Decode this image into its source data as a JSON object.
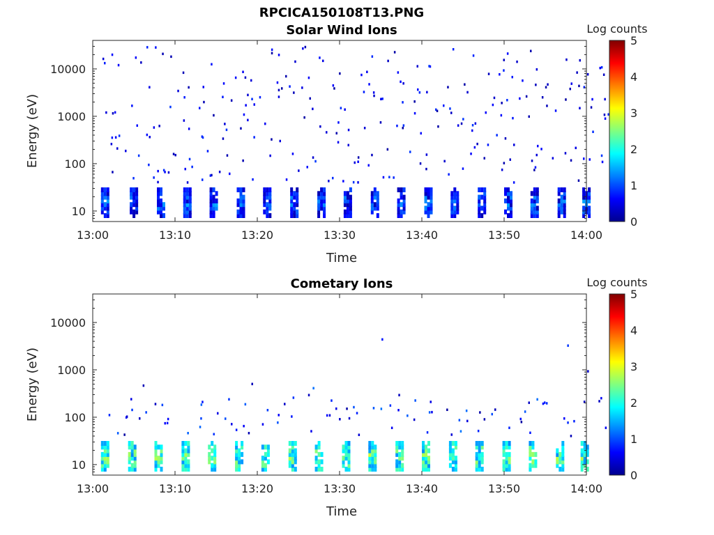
{
  "figure_title": "RPCICA150108T13.PNG",
  "colors": {
    "jet_stops": [
      "#00008f",
      "#0000ff",
      "#0080ff",
      "#00ffff",
      "#80ff80",
      "#ffff00",
      "#ff8000",
      "#ff0000",
      "#800000"
    ]
  },
  "chart_data": [
    {
      "type": "heatmap",
      "title": "Solar Wind Ions",
      "xlabel": "Time",
      "ylabel": "Energy (eV)",
      "x_ticks": [
        "13:00",
        "13:10",
        "13:20",
        "13:30",
        "13:40",
        "13:50",
        "14:00"
      ],
      "x_range_minutes": [
        0,
        60
      ],
      "y_scale": "log",
      "y_ticks": [
        10,
        100,
        1000,
        10000
      ],
      "y_tick_labels": [
        "10",
        "100",
        "1000",
        "10000"
      ],
      "y_range": [
        6,
        40000
      ],
      "colorbar": {
        "label": "Log counts",
        "range": [
          0,
          5
        ],
        "ticks": [
          "0",
          "1",
          "2",
          "3",
          "4",
          "5"
        ]
      },
      "scan_starts_minutes": [
        1,
        4.5,
        7.8,
        11,
        14.2,
        17.5,
        20.7,
        24,
        27.3,
        30.5,
        33.8,
        37,
        40.3,
        43.5,
        46.8,
        50,
        53.2,
        56.5,
        59.5
      ],
      "low_energy_band_eV": [
        8,
        28
      ],
      "low_energy_band_log_counts": [
        0.2,
        1.6
      ],
      "sparse_points_log_counts": [
        0.1,
        0.9
      ]
    },
    {
      "type": "heatmap",
      "title": "Cometary Ions",
      "xlabel": "Time",
      "ylabel": "Energy (eV)",
      "x_ticks": [
        "13:00",
        "13:10",
        "13:20",
        "13:30",
        "13:40",
        "13:50",
        "14:00"
      ],
      "x_range_minutes": [
        0,
        60
      ],
      "y_scale": "log",
      "y_ticks": [
        10,
        100,
        1000,
        10000
      ],
      "y_tick_labels": [
        "10",
        "100",
        "1000",
        "10000"
      ],
      "y_range": [
        6,
        40000
      ],
      "colorbar": {
        "label": "Log counts",
        "range": [
          0,
          5
        ],
        "ticks": [
          "0",
          "1",
          "2",
          "3",
          "4",
          "5"
        ]
      },
      "scan_starts_minutes": [
        1,
        4.3,
        7.5,
        10.8,
        14,
        17.3,
        20.5,
        23.8,
        27,
        30.3,
        33.5,
        36.8,
        40,
        43.3,
        46.5,
        49.8,
        53,
        56.3,
        59.3
      ],
      "low_energy_band_eV": [
        8,
        28
      ],
      "low_energy_band_log_counts": [
        1.3,
        3.0
      ],
      "sparse_points_log_counts": [
        0.1,
        1.2
      ]
    }
  ]
}
